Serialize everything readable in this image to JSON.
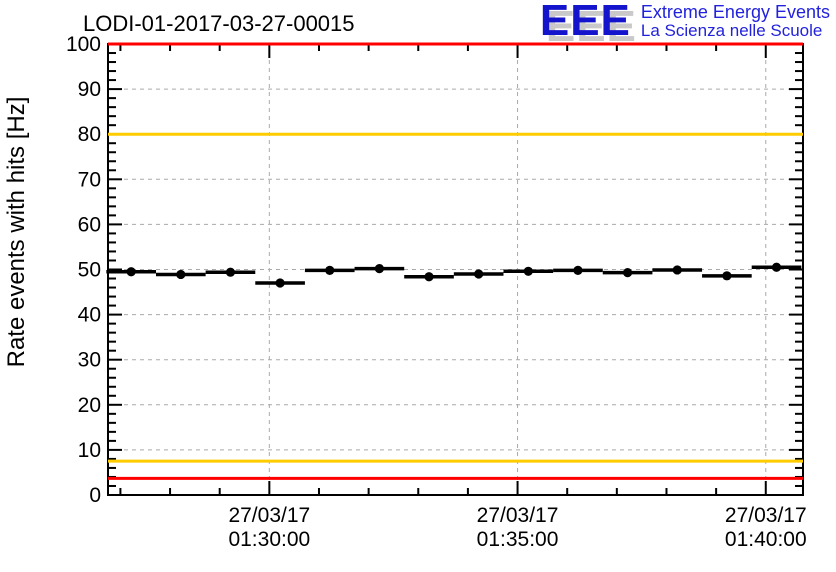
{
  "header": {
    "plot_title": "LODI-01-2017-03-27-00015",
    "logo": {
      "acronym": "EEE",
      "line1": "Extreme Energy Events",
      "line2": "La Scienza nelle Scuole"
    }
  },
  "chart_data": {
    "type": "scatter",
    "title": "LODI-01-2017-03-27-00015",
    "ylabel": "Rate events with hits [Hz]",
    "xlabel": "",
    "ylim": [
      0,
      100
    ],
    "y_major_step": 10,
    "y_minor_step": 2,
    "grid": true,
    "x_axis_start": "01:26:45",
    "x_axis_end": "01:40:45",
    "x_minor_step_seconds": 60,
    "x_ticks": [
      {
        "date": "27/03/17",
        "time": "01:30:00"
      },
      {
        "date": "27/03/17",
        "time": "01:35:00"
      },
      {
        "date": "27/03/17",
        "time": "01:40:00"
      }
    ],
    "points": {
      "x_times": [
        "01:27:13",
        "01:28:13",
        "01:29:13",
        "01:30:13",
        "01:31:13",
        "01:32:13",
        "01:33:13",
        "01:34:13",
        "01:35:13",
        "01:36:13",
        "01:37:13",
        "01:38:13",
        "01:39:13",
        "01:40:13"
      ],
      "values": [
        49.5,
        48.9,
        49.4,
        47.0,
        49.8,
        50.2,
        48.4,
        49.0,
        49.6,
        49.8,
        49.3,
        49.9,
        48.6,
        50.5
      ],
      "bin_halfwidth_seconds": 30,
      "series_name": "rate-events-with-hits"
    },
    "threshold_lines": [
      {
        "value": 100,
        "color": "#ff0000",
        "name": "upper-error-threshold"
      },
      {
        "value": 80,
        "color": "#ffcc00",
        "name": "upper-warning-threshold"
      },
      {
        "value": 7.5,
        "color": "#ffcc00",
        "name": "lower-warning-threshold"
      },
      {
        "value": 3.7,
        "color": "#ff0000",
        "name": "lower-error-threshold"
      }
    ],
    "colors": {
      "marker": "#000000",
      "frame": "#000000",
      "grid": "#aaaaaa",
      "text": "#000000",
      "background": "#ffffff"
    }
  }
}
